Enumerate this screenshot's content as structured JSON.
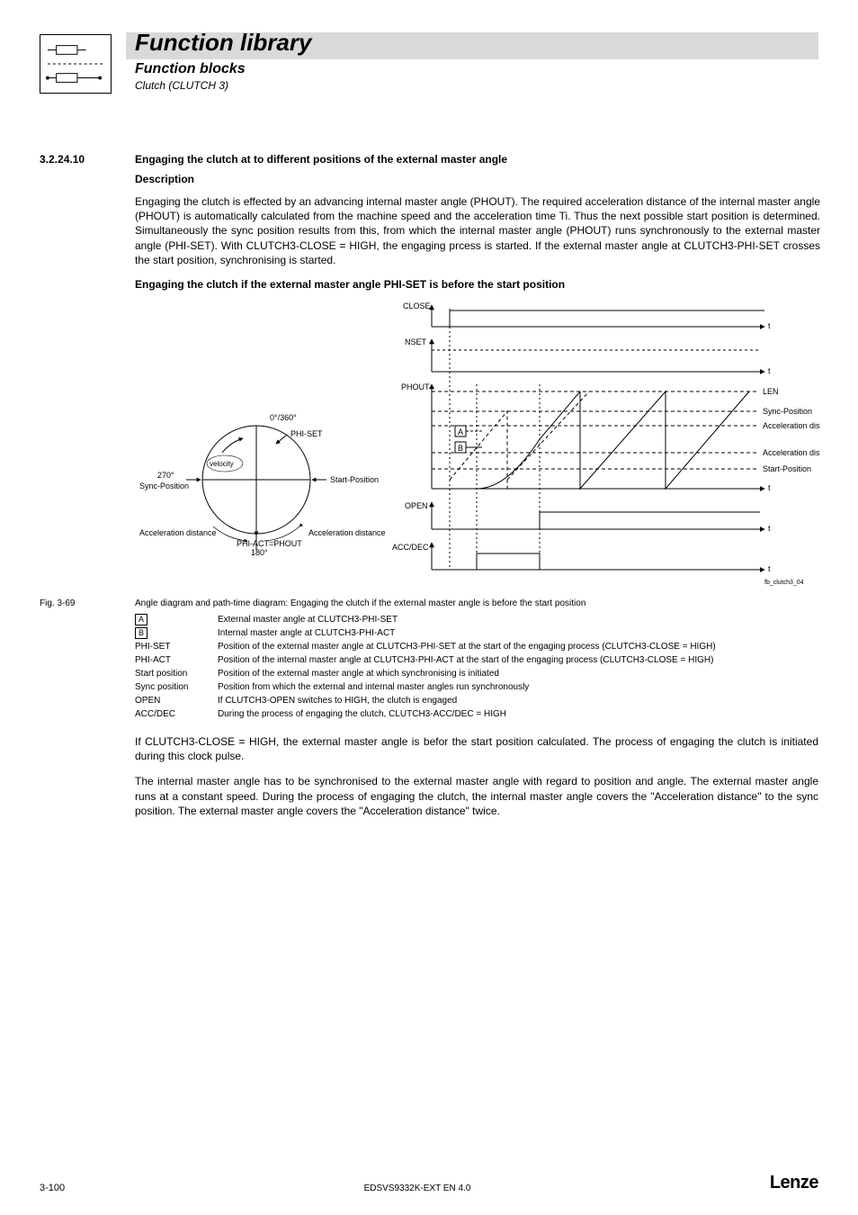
{
  "header": {
    "title": "Function library",
    "subtitle": "Function blocks",
    "subsub": "Clutch (CLUTCH 3)"
  },
  "section": {
    "number": "3.2.24.10",
    "heading": "Engaging the clutch at to different positions of the external master angle",
    "desc_label": "Description",
    "desc_para": "Engaging the clutch is effected by an advancing internal master angle (PHOUT). The required acceleration distance of the internal master angle (PHOUT) is automatically calculated from the machine speed and the acceleration time Ti. Thus the next possible start position is determined. Simultaneously the sync position results from this, from which the internal master angle (PHOUT) runs synchronously to the external master angle (PHI-SET). With CLUTCH3-CLOSE = HIGH, the engaging prcess is started. If the external master angle at CLUTCH3-PHI-SET crosses the start position, synchronising is started.",
    "bold_sub": "Engaging the clutch if the external master angle PHI-SET is before the start position"
  },
  "figure": {
    "circle": {
      "deg0": "0°/360°",
      "deg90": "PHI-SET",
      "deg180": "180°",
      "deg270": "270°",
      "sync_pos": "Sync-Position",
      "start_pos": "Start-Position",
      "accel_dist": "Acceleration distance",
      "phi_act": "PHI-ACT=PHOUT",
      "velocity": "velocity"
    },
    "signals": {
      "close": "CLOSE",
      "nset": "NSET",
      "phout": "PHOUT",
      "open": "OPEN",
      "accdec": "ACC/DEC",
      "t": "t",
      "len": "LEN",
      "sync_pos": "Sync-Position",
      "accel_dist": "Acceleration distance",
      "start_pos": "Start-Position",
      "boxA": "A",
      "boxB": "B"
    },
    "watermark": "fb_clutch3_04",
    "colors": {
      "line": "#000000",
      "dash": "#000000",
      "bg": "#ffffff"
    }
  },
  "caption": {
    "label": "Fig. 3-69",
    "text": "Angle diagram and path-time diagram: Engaging the clutch if the external master angle is before the start position"
  },
  "legend": {
    "items": [
      {
        "key_boxed": "A",
        "val": "External master angle at CLUTCH3-PHI-SET"
      },
      {
        "key_boxed": "B",
        "val": "Internal master angle at CLUTCH3-PHI-ACT"
      },
      {
        "key": "PHI-SET",
        "val": "Position of the external master angle at CLUTCH3-PHI-SET at the start of the engaging process (CLUTCH3-CLOSE = HIGH)"
      },
      {
        "key": "PHI-ACT",
        "val": "Position of the internal master angle at CLUTCH3-PHI-ACT at the start of the engaging process (CLUTCH3-CLOSE = HIGH)"
      },
      {
        "key": "Start position",
        "val": "Position of the external master angle at which synchronising is initiated"
      },
      {
        "key": "Sync position",
        "val": "Position from which the external and internal master angles run synchronously"
      },
      {
        "key": "OPEN",
        "val": "If CLUTCH3-OPEN switches to HIGH, the clutch is engaged"
      },
      {
        "key": "ACC/DEC",
        "val": "During the process of engaging the clutch, CLUTCH3-ACC/DEC = HIGH"
      }
    ]
  },
  "body_paras": [
    "If CLUTCH3-CLOSE = HIGH, the external master angle is befor the start position calculated. The process of engaging the clutch is initiated during this clock pulse.",
    "The internal master angle has to be synchronised to the external master angle with regard to position and angle. The external master angle runs at a constant speed. During the process of engaging the clutch, the internal master angle covers the \"Acceleration distance\" to the sync position. The external master angle covers the \"Acceleration distance\" twice."
  ],
  "footer": {
    "page": "3-100",
    "doc": "EDSVS9332K-EXT EN 4.0",
    "logo": "Lenze"
  }
}
